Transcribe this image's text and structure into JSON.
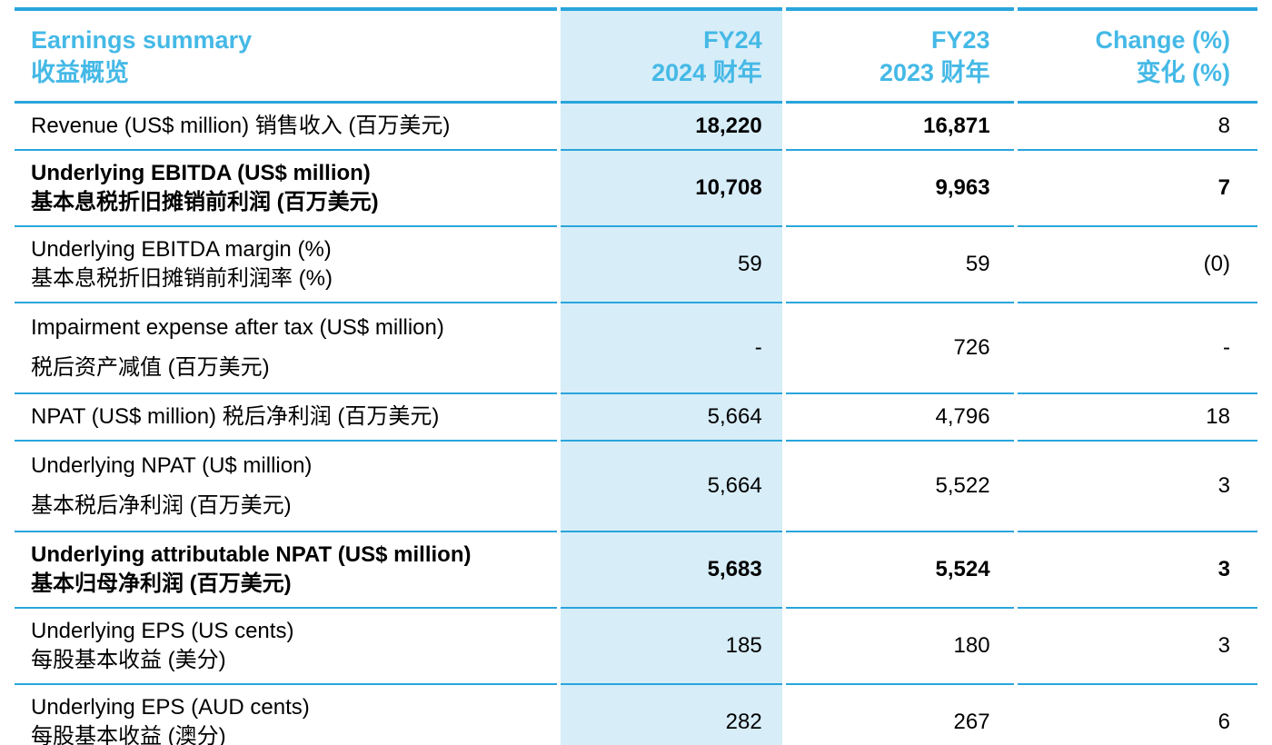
{
  "colors": {
    "header_text": "#45b9e6",
    "rule_line": "#2aa5dc",
    "fy24_column_background": "#d7edf8",
    "body_text": "#000000",
    "page_background": "#ffffff"
  },
  "header": {
    "title_line1": "Earnings summary",
    "title_line2": "收益概览",
    "fy24_line1": "FY24",
    "fy24_line2": "2024 财年",
    "fy23_line1": "FY23",
    "fy23_line2": "2023 财年",
    "change_line1": "Change (%)",
    "change_line2": "变化 (%)"
  },
  "rows": [
    {
      "label_en": "Revenue (US$ million) 销售收入 (百万美元)",
      "label_zh": "",
      "fy24": "18,220",
      "fy23": "16,871",
      "change": "8"
    },
    {
      "label_en": "Underlying EBITDA (US$ million)",
      "label_zh": "基本息税折旧摊销前利润 (百万美元)",
      "fy24": "10,708",
      "fy23": "9,963",
      "change": "7"
    },
    {
      "label_en": "Underlying EBITDA margin (%)",
      "label_zh": "基本息税折旧摊销前利润率 (%)",
      "fy24": "59",
      "fy23": "59",
      "change": "(0)"
    },
    {
      "label_en": "Impairment expense after tax (US$ million)",
      "label_zh": "税后资产减值 (百万美元)",
      "fy24": "-",
      "fy23": "726",
      "change": "-"
    },
    {
      "label_en": "NPAT (US$ million) 税后净利润 (百万美元)",
      "label_zh": "",
      "fy24": "5,664",
      "fy23": "4,796",
      "change": "18"
    },
    {
      "label_en": "Underlying NPAT (U$ million)",
      "label_zh": "基本税后净利润 (百万美元)",
      "fy24": "5,664",
      "fy23": "5,522",
      "change": "3"
    },
    {
      "label_en": "Underlying attributable NPAT (US$ million)",
      "label_zh": "基本归母净利润 (百万美元)",
      "fy24": "5,683",
      "fy23": "5,524",
      "change": "3"
    },
    {
      "label_en": "Underlying EPS (US cents)",
      "label_zh": "每股基本收益 (美分)",
      "fy24": "185",
      "fy23": "180",
      "change": "3"
    },
    {
      "label_en": "Underlying EPS (AUD cents)",
      "label_zh": "每股基本收益 (澳分)",
      "fy24": "282",
      "fy23": "267",
      "change": "6"
    }
  ]
}
